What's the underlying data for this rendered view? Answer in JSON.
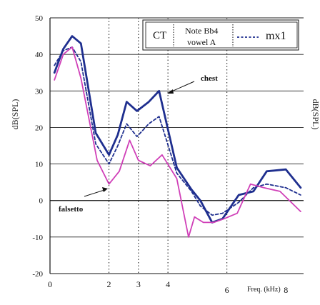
{
  "chart_data": {
    "type": "line",
    "ylabel": "dB(SPL)",
    "ylabel_right": "dB(SPL)",
    "xlabel": "Freq. (kHz)",
    "xlim": [
      0,
      8.6
    ],
    "ylim": [
      -20,
      50
    ],
    "yticks": [
      50,
      40,
      30,
      20,
      10,
      0,
      -10,
      -20
    ],
    "xticks": [
      0,
      2,
      3,
      4,
      6,
      8
    ],
    "vlines": [
      2,
      3,
      4,
      6
    ],
    "series": [
      {
        "name": "CT",
        "color": "#1f2f8f",
        "style": "solid",
        "width": 2.8,
        "x": [
          0.15,
          0.45,
          0.75,
          1.05,
          1.55,
          2.0,
          2.3,
          2.6,
          2.95,
          3.35,
          3.7,
          4.3,
          4.8,
          5.1,
          5.5,
          5.85,
          6.4,
          6.9,
          7.35,
          8.0,
          8.5
        ],
        "y": [
          35,
          41.5,
          45,
          43,
          18.5,
          12.5,
          18,
          27,
          24.5,
          27,
          30,
          9,
          3,
          0,
          -6,
          -5,
          1.5,
          2.5,
          8,
          8.5,
          3.5
        ]
      },
      {
        "name": "mx1",
        "color": "#1f2f8f",
        "style": "dashed",
        "width": 1.8,
        "x": [
          0.15,
          0.45,
          0.75,
          1.05,
          1.55,
          2.0,
          2.3,
          2.6,
          2.95,
          3.35,
          3.7,
          4.3,
          4.8,
          5.1,
          5.5,
          5.85,
          6.4,
          6.9,
          7.35,
          8.0,
          8.5
        ],
        "y": [
          37,
          41,
          42,
          38,
          15.5,
          10,
          15,
          21,
          17.5,
          21,
          23,
          7.5,
          2.5,
          -1.5,
          -4,
          -3.5,
          -0.5,
          3.5,
          4.5,
          3.5,
          1.5
        ]
      },
      {
        "name": "falsetto",
        "color": "#d040b8",
        "style": "solid",
        "width": 1.8,
        "x": [
          0.15,
          0.45,
          0.75,
          1.05,
          1.6,
          2.0,
          2.35,
          2.7,
          3.0,
          3.4,
          3.8,
          4.3,
          4.7,
          4.9,
          5.2,
          5.55,
          5.9,
          6.35,
          6.8,
          7.25,
          7.8,
          8.5
        ],
        "y": [
          33,
          40,
          42,
          33.5,
          11,
          4.5,
          8,
          16.5,
          11,
          9.5,
          12.5,
          6,
          -10,
          -4.5,
          -6,
          -6,
          -5,
          -3.5,
          4.5,
          3.5,
          2.5,
          -3
        ]
      }
    ],
    "legend": {
      "placement": "top-right",
      "ct_label": "CT",
      "note_line1": "Note Bb4",
      "note_line2": "vowel A",
      "mx_label": "mx1"
    },
    "annotations": [
      {
        "text": "chest"
      },
      {
        "text": "falsetto"
      }
    ]
  }
}
